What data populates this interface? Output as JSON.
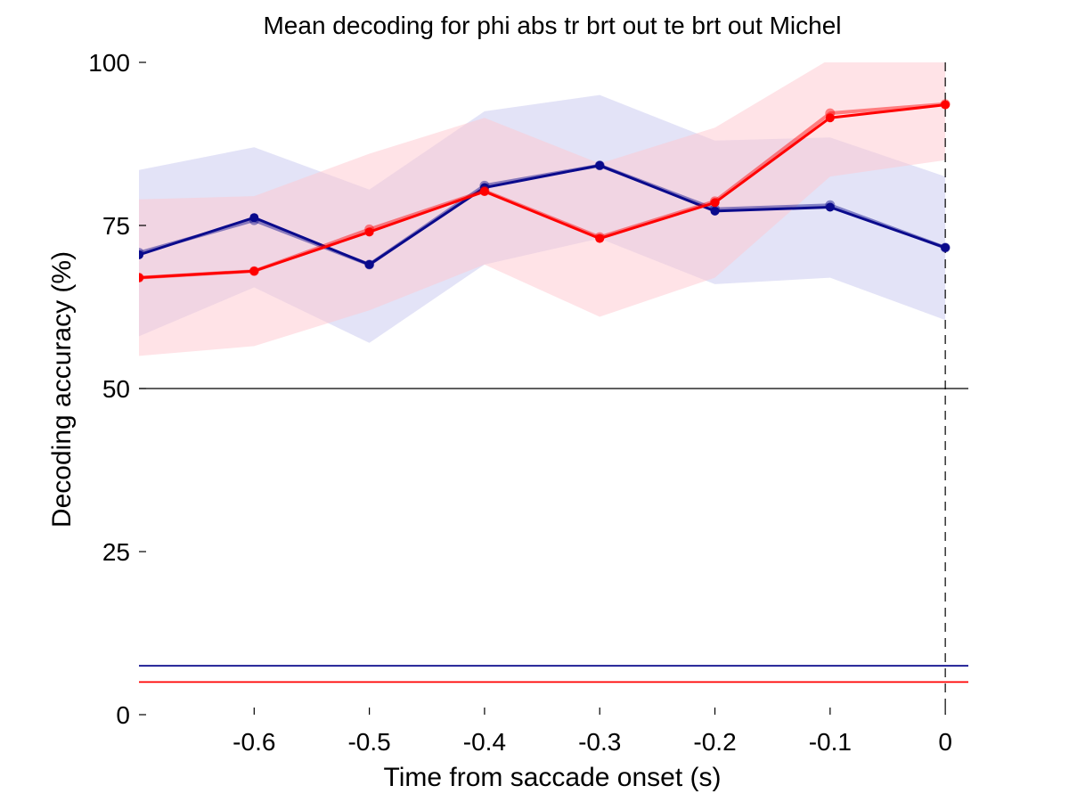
{
  "chart_data": {
    "type": "line",
    "title": "Mean decoding for phi abs tr brt out te brt out  Michel",
    "xlabel": "Time from saccade onset (s)",
    "ylabel": "Decoding accuracy (%)",
    "xlim": [
      -0.7,
      0.02
    ],
    "ylim": [
      0,
      100
    ],
    "xticks": [
      -0.6,
      -0.5,
      -0.4,
      -0.3,
      -0.2,
      -0.1,
      0
    ],
    "xtick_labels": [
      "-0.6",
      "-0.5",
      "-0.4",
      "-0.3",
      "-0.2",
      "-0.1",
      "0"
    ],
    "yticks": [
      0,
      25,
      50,
      75,
      100
    ],
    "ytick_labels": [
      "0",
      "25",
      "50",
      "75",
      "100"
    ],
    "x": [
      -0.7,
      -0.6,
      -0.5,
      -0.4,
      -0.3,
      -0.2,
      -0.1,
      0
    ],
    "series": [
      {
        "name": "blue",
        "color": "#0a0a8c",
        "band_color": "#c8c8f0",
        "values": [
          70.5,
          76.2,
          69.0,
          80.8,
          84.2,
          77.2,
          77.8,
          71.6
        ],
        "shadow_values": [
          70.8,
          75.8,
          69.0,
          81.1,
          84.2,
          77.5,
          78.1,
          71.6
        ],
        "upper": [
          83.5,
          87.0,
          80.5,
          92.5,
          95.0,
          88.0,
          88.5,
          82.5
        ],
        "lower": [
          58.0,
          65.5,
          57.0,
          69.0,
          73.0,
          66.0,
          67.0,
          60.5
        ],
        "chance_level": 7.5
      },
      {
        "name": "red",
        "color": "#ff0000",
        "band_color": "#ffc8d0",
        "values": [
          67.0,
          68.0,
          74.0,
          80.2,
          73.0,
          78.5,
          91.5,
          93.5
        ],
        "shadow_values": [
          67.0,
          68.0,
          74.4,
          80.3,
          73.2,
          78.7,
          92.2,
          93.6
        ],
        "upper": [
          79.0,
          79.5,
          86.0,
          91.5,
          84.5,
          90.0,
          100.5,
          100.5
        ],
        "lower": [
          55.0,
          56.5,
          62.0,
          69.0,
          61.0,
          67.0,
          82.5,
          85.0
        ],
        "chance_level": 5.0
      }
    ],
    "reference_lines": {
      "horizontal_y": 50,
      "vertical_dashed_x": 0
    },
    "grid": false,
    "legend": "none"
  }
}
